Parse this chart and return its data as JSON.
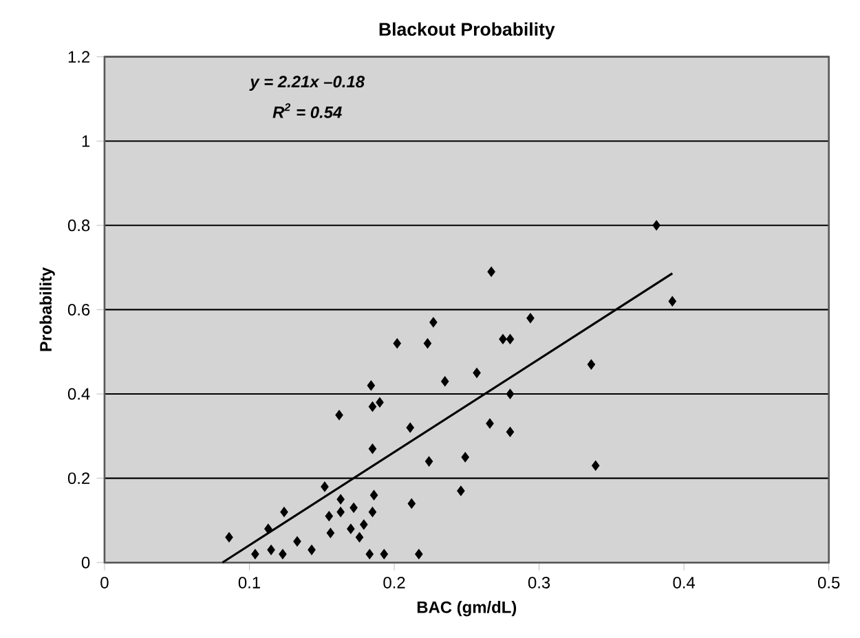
{
  "chart_data": {
    "type": "scatter",
    "title": "Blackout Probability",
    "xlabel": "BAC (gm/dL)",
    "ylabel": "Probability",
    "annotations": [
      "y = 2.21x –0.18",
      "R$^{2}$ = 0.54"
    ],
    "xlim": [
      0,
      0.5
    ],
    "xticks": [
      0,
      0.1,
      0.2,
      0.3,
      0.4,
      0.5
    ],
    "ylim": [
      0,
      1.2
    ],
    "yticks": [
      0,
      0.2,
      0.4,
      0.6,
      0.8,
      1,
      1.2
    ],
    "grid": "y",
    "series": [
      {
        "color": "#000000",
        "marker": "diamond",
        "x": [
          0.227,
          0.202,
          0.223,
          0.257,
          0.235,
          0.184,
          0.162,
          0.185,
          0.19,
          0.211,
          0.185,
          0.224,
          0.249,
          0.152,
          0.246,
          0.124,
          0.186,
          0.163,
          0.172,
          0.212,
          0.155,
          0.163,
          0.185,
          0.179,
          0.17,
          0.113,
          0.086,
          0.156,
          0.176,
          0.133,
          0.143,
          0.115,
          0.123,
          0.104,
          0.183,
          0.193,
          0.217,
          0.381,
          0.267,
          0.392,
          0.294,
          0.275,
          0.28,
          0.336,
          0.28,
          0.266,
          0.28,
          0.339
        ],
        "values": [
          0.57,
          0.52,
          0.52,
          0.45,
          0.43,
          0.42,
          0.35,
          0.37,
          0.38,
          0.32,
          0.27,
          0.24,
          0.25,
          0.18,
          0.17,
          0.12,
          0.16,
          0.15,
          0.13,
          0.14,
          0.11,
          0.12,
          0.12,
          0.09,
          0.08,
          0.08,
          0.06,
          0.07,
          0.06,
          0.05,
          0.03,
          0.03,
          0.02,
          0.02,
          0.02,
          0.02,
          0.02,
          0.8,
          0.69,
          0.62,
          0.58,
          0.53,
          0.53,
          0.47,
          0.4,
          0.33,
          0.31,
          0.23
        ]
      },
      {
        "type": "line",
        "color": "#000000",
        "line_style": "solid",
        "marker": "none",
        "x": [
          0.0814,
          0.392
        ],
        "values": [
          0.0,
          0.686
        ]
      }
    ]
  }
}
